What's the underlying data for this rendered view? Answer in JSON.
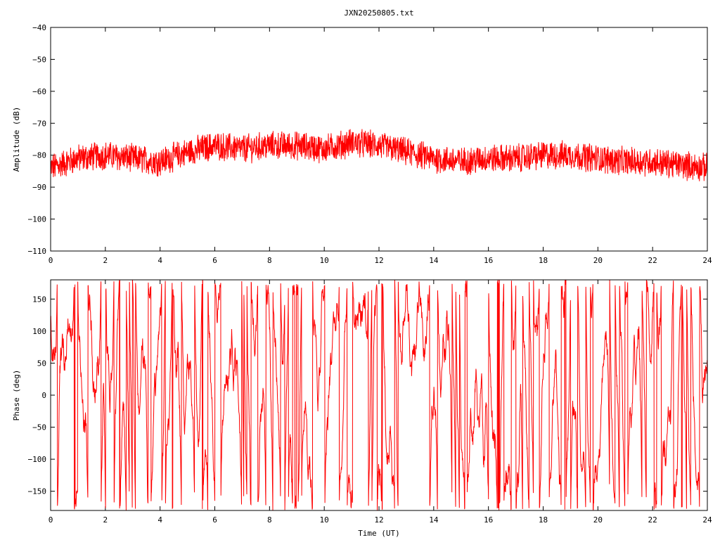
{
  "chart_data": [
    {
      "type": "line",
      "title": "JXN20250805.txt",
      "xlabel": "",
      "ylabel": "Amplitude (dB)",
      "xlim": [
        0,
        24
      ],
      "ylim": [
        -110,
        -40
      ],
      "xticks": [
        "0",
        "2",
        "4",
        "6",
        "8",
        "10",
        "12",
        "14",
        "16",
        "18",
        "20",
        "22",
        "24"
      ],
      "yticks": [
        "−40",
        "−50",
        "−60",
        "−70",
        "−80",
        "−90",
        "−100",
        "−110"
      ],
      "series": [
        {
          "color": "#ff0000",
          "envelope": {
            "x": [
              0,
              1,
              2,
              3,
              4,
              5,
              6,
              7,
              8,
              9,
              10,
              11,
              12,
              13,
              14,
              15,
              16,
              17,
              18,
              19,
              20,
              21,
              22,
              23,
              24
            ],
            "y": [
              -84,
              -81,
              -80,
              -81,
              -82,
              -79,
              -77,
              -78,
              -77,
              -77,
              -78,
              -76,
              -77,
              -79,
              -81,
              -82,
              -81,
              -81,
              -80,
              -80,
              -81,
              -82,
              -82,
              -83,
              -84
            ],
            "noise": 4
          }
        }
      ]
    },
    {
      "type": "line",
      "xlabel": "Time (UT)",
      "ylabel": "Phase (deg)",
      "xlim": [
        0,
        24
      ],
      "ylim": [
        -180,
        180
      ],
      "xticks": [
        "0",
        "2",
        "4",
        "6",
        "8",
        "10",
        "12",
        "14",
        "16",
        "18",
        "20",
        "22",
        "24"
      ],
      "yticks": [
        "150",
        "100",
        "50",
        "0",
        "−50",
        "−100",
        "−150"
      ],
      "ytick_values": [
        150,
        100,
        50,
        0,
        -50,
        -100,
        -150
      ],
      "series": [
        {
          "color": "#ff0000",
          "wrapped": true,
          "wrap_range": [
            -180,
            180
          ]
        }
      ]
    }
  ]
}
